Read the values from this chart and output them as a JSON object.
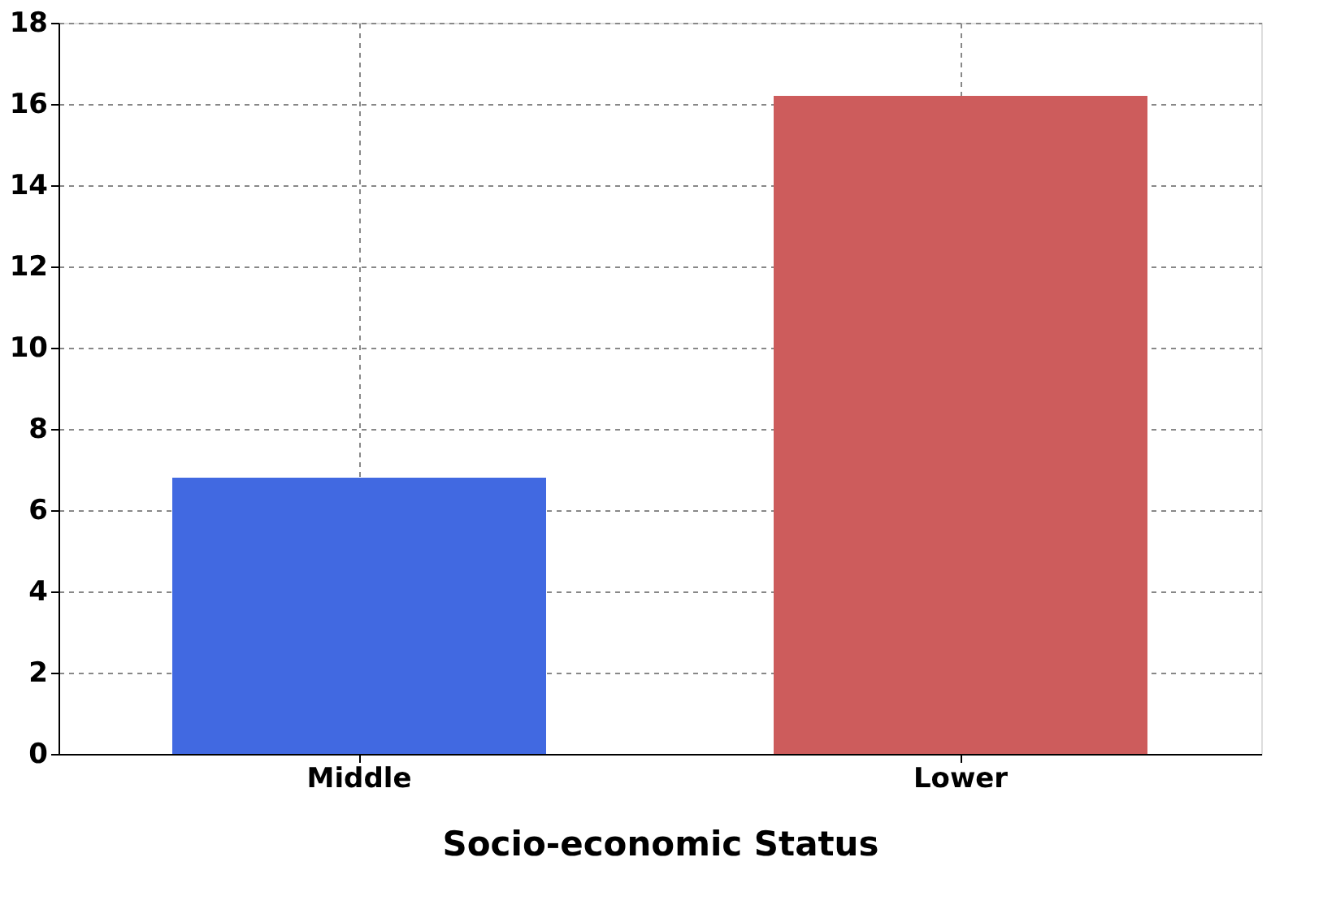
{
  "chart_data": {
    "type": "bar",
    "xlabel": "Socio-economic Status",
    "categories": [
      "Middle",
      "Lower"
    ],
    "values": [
      6.8,
      16.2
    ],
    "colors": [
      "#4169e1",
      "#cd5c5c"
    ],
    "ylim": [
      0,
      18
    ],
    "yticks": [
      0,
      2,
      4,
      6,
      8,
      10,
      12,
      14,
      16,
      18
    ],
    "grid": true,
    "legend": false
  }
}
